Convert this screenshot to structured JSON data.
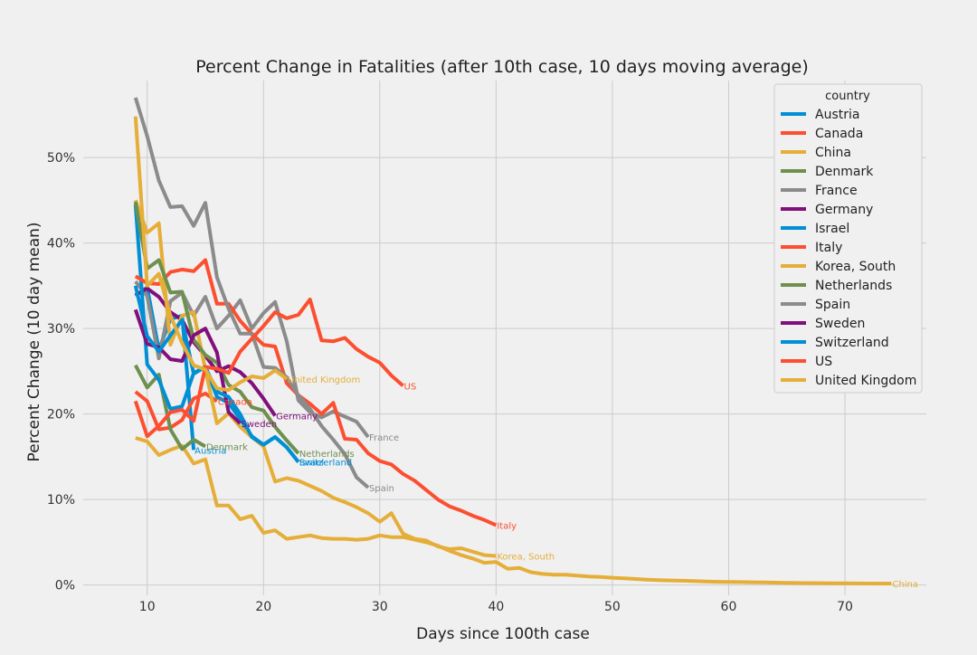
{
  "chart_data": {
    "type": "line",
    "title": "Percent Change in Fatalities (after 10th case, 10 days moving average)",
    "xlabel": "Days since 100th case",
    "ylabel": "Percent Change (10 day mean)",
    "xlim": [
      4.5,
      77
    ],
    "ylim": [
      -1.2,
      59
    ],
    "xticks": [
      10,
      20,
      30,
      40,
      50,
      60,
      70
    ],
    "yticks": [
      0,
      10,
      20,
      30,
      40,
      50
    ],
    "ytick_format": "percent",
    "grid": true,
    "legend": {
      "title": "country",
      "placement": "top-right"
    },
    "series": [
      {
        "name": "Austria",
        "color": "#008fd5",
        "end_label": "Austria",
        "x": [
          9,
          10,
          11,
          12,
          13,
          14
        ],
        "y": [
          33.8,
          34.8,
          27.5,
          31.1,
          31.5,
          15.8
        ]
      },
      {
        "name": "Canada",
        "color": "#fc4f30",
        "end_label": "Canada",
        "x": [
          9,
          10,
          11,
          12,
          13,
          14,
          15,
          16
        ],
        "y": [
          22.6,
          21.5,
          18.2,
          18.4,
          19.3,
          21.8,
          22.4,
          21.5
        ]
      },
      {
        "name": "China",
        "color": "#e5ae38",
        "end_label": "China",
        "x": [
          9,
          10,
          11,
          12,
          13,
          14,
          15,
          16,
          17,
          18,
          19,
          20,
          21,
          22,
          23,
          24,
          25,
          26,
          27,
          28,
          29,
          30,
          31,
          32,
          33,
          34,
          35,
          36,
          37,
          38,
          39,
          40,
          41,
          42,
          43,
          44,
          45,
          46,
          47,
          48,
          49,
          50,
          51,
          52,
          53,
          54,
          55,
          56,
          57,
          58,
          59,
          60,
          61,
          62,
          63,
          64,
          65,
          66,
          67,
          68,
          69,
          70,
          71,
          72,
          73,
          74
        ],
        "y": [
          17.2,
          16.8,
          15.2,
          15.8,
          16.3,
          14.2,
          14.7,
          9.3,
          9.3,
          7.7,
          8.1,
          6.1,
          6.4,
          5.4,
          5.6,
          5.8,
          5.5,
          5.4,
          5.4,
          5.3,
          5.4,
          5.8,
          5.6,
          5.6,
          5.3,
          5.0,
          4.6,
          4.0,
          3.5,
          3.1,
          2.6,
          2.7,
          1.9,
          2.0,
          1.5,
          1.3,
          1.2,
          1.2,
          1.1,
          1.0,
          0.95,
          0.85,
          0.78,
          0.7,
          0.63,
          0.58,
          0.54,
          0.5,
          0.46,
          0.42,
          0.38,
          0.36,
          0.34,
          0.32,
          0.3,
          0.28,
          0.26,
          0.24,
          0.23,
          0.22,
          0.2,
          0.2,
          0.19,
          0.18,
          0.18,
          0.18
        ]
      },
      {
        "name": "Denmark",
        "color": "#6d904f",
        "end_label": "Denmark",
        "x": [
          9,
          10,
          11,
          12,
          13,
          14,
          15
        ],
        "y": [
          25.7,
          23.1,
          24.6,
          18.2,
          15.9,
          17.0,
          16.2
        ]
      },
      {
        "name": "France",
        "color": "#8b8b8b",
        "end_label": "France",
        "x": [
          9,
          10,
          11,
          12,
          13,
          14,
          15,
          16,
          17,
          18,
          19,
          20,
          21,
          22,
          23,
          24,
          25,
          26,
          27,
          28,
          29
        ],
        "y": [
          35.5,
          33.8,
          26.5,
          33.2,
          34.2,
          31.5,
          33.7,
          30.0,
          31.5,
          33.3,
          30.0,
          31.8,
          33.1,
          28.5,
          21.6,
          20.2,
          19.6,
          20.3,
          19.7,
          19.1,
          17.3
        ]
      },
      {
        "name": "Germany",
        "color": "#810f7c",
        "end_label": "Germany",
        "x": [
          9,
          10,
          11,
          12,
          13,
          14,
          15,
          16,
          17,
          18,
          19,
          20,
          21
        ],
        "y": [
          33.9,
          34.7,
          33.7,
          31.9,
          31.0,
          28.4,
          26.8,
          25.0,
          25.6,
          24.9,
          23.6,
          21.8,
          19.8
        ]
      },
      {
        "name": "Israel",
        "color": "#008fd5",
        "end_label": "Israel",
        "x": [
          9,
          10,
          11,
          12,
          13,
          14,
          15,
          16,
          17,
          18,
          19,
          20,
          21,
          22,
          23
        ],
        "y": [
          44.5,
          25.8,
          24.0,
          20.6,
          20.9,
          24.8,
          25.5,
          22.0,
          21.3,
          19.4,
          17.4,
          16.4,
          17.3,
          16.1,
          14.4
        ]
      },
      {
        "name": "Italy",
        "color": "#fc4f30",
        "end_label": "Italy",
        "x": [
          9,
          10,
          11,
          12,
          13,
          14,
          15,
          16,
          17,
          18,
          19,
          20,
          21,
          22,
          23,
          24,
          25,
          26,
          27,
          28,
          29,
          30,
          31,
          32,
          33,
          34,
          35,
          36,
          37,
          38,
          39,
          40
        ],
        "y": [
          36.1,
          35.3,
          35.2,
          36.6,
          36.9,
          36.7,
          38.0,
          32.9,
          32.9,
          30.9,
          29.4,
          28.1,
          27.9,
          23.6,
          22.2,
          21.2,
          20.0,
          21.3,
          17.1,
          17.0,
          15.4,
          14.5,
          14.1,
          13.0,
          12.2,
          11.1,
          10.0,
          9.2,
          8.7,
          8.1,
          7.6,
          7.0
        ]
      },
      {
        "name": "Korea, South",
        "color": "#e5ae38",
        "end_label": "Korea, South",
        "x": [
          9,
          10,
          11,
          12,
          13,
          14,
          15,
          16,
          17,
          18,
          19,
          20,
          21,
          22,
          23,
          24,
          25,
          26,
          27,
          28,
          29,
          30,
          31,
          32,
          33,
          34,
          35,
          36,
          37,
          38,
          39,
          40
        ],
        "y": [
          45.0,
          41.2,
          42.3,
          28.1,
          31.5,
          31.9,
          25.2,
          18.9,
          20.1,
          18.5,
          17.3,
          16.2,
          12.1,
          12.5,
          12.2,
          11.6,
          11.0,
          10.2,
          9.7,
          9.1,
          8.4,
          7.4,
          8.4,
          6.0,
          5.4,
          5.2,
          4.5,
          4.2,
          4.3,
          3.9,
          3.5,
          3.4
        ]
      },
      {
        "name": "Netherlands",
        "color": "#6d904f",
        "end_label": "Netherlands",
        "x": [
          9,
          10,
          11,
          12,
          13,
          14,
          15,
          16,
          17,
          18,
          19,
          20,
          21,
          22,
          23
        ],
        "y": [
          44.8,
          37.0,
          38.0,
          34.2,
          34.3,
          28.7,
          26.9,
          26.0,
          23.4,
          22.6,
          20.8,
          20.4,
          18.5,
          16.9,
          15.4
        ]
      },
      {
        "name": "Spain",
        "color": "#8b8b8b",
        "end_label": "Spain",
        "x": [
          9,
          10,
          11,
          12,
          13,
          14,
          15,
          16,
          17,
          18,
          19,
          20,
          21,
          22,
          23,
          24,
          25,
          26,
          27,
          28,
          29
        ],
        "y": [
          57.0,
          52.5,
          47.3,
          44.2,
          44.3,
          42.0,
          44.7,
          36.0,
          32.3,
          29.4,
          29.4,
          25.5,
          25.4,
          24.3,
          22.2,
          20.6,
          18.6,
          17.0,
          15.3,
          12.6,
          11.4
        ]
      },
      {
        "name": "Sweden",
        "color": "#810f7c",
        "end_label": "Sweden",
        "x": [
          9,
          10,
          11,
          12,
          13,
          14,
          15,
          16,
          17,
          18
        ],
        "y": [
          32.2,
          28.2,
          27.8,
          26.4,
          26.2,
          29.2,
          30.0,
          27.2,
          20.2,
          18.9
        ]
      },
      {
        "name": "Switzerland",
        "color": "#008fd5",
        "end_label": "Switzerland",
        "x": [
          9,
          10,
          11,
          12,
          13,
          14,
          15,
          16,
          17,
          18,
          19,
          20,
          21,
          22,
          23
        ],
        "y": [
          35.0,
          29.1,
          27.3,
          29.2,
          31.0,
          24.7,
          25.5,
          22.6,
          22.0,
          20.0,
          17.3,
          16.4,
          17.3,
          16.1,
          14.4
        ]
      },
      {
        "name": "US",
        "color": "#fc4f30",
        "end_label": "US",
        "x": [
          9,
          10,
          11,
          12,
          13,
          14,
          15,
          16,
          17,
          18,
          19,
          20,
          21,
          22,
          23,
          24,
          25,
          26,
          27,
          28,
          29,
          30,
          31,
          32
        ],
        "y": [
          21.5,
          17.4,
          18.6,
          20.2,
          20.5,
          19.2,
          25.5,
          25.3,
          24.8,
          27.3,
          28.8,
          30.3,
          31.9,
          31.2,
          31.6,
          33.4,
          28.6,
          28.5,
          28.9,
          27.6,
          26.7,
          26.0,
          24.5,
          23.3
        ]
      },
      {
        "name": "United Kingdom",
        "color": "#e5ae38",
        "end_label": "United Kingdom",
        "x": [
          9,
          10,
          11,
          12,
          13,
          14,
          15,
          16,
          17,
          18,
          19,
          20,
          21,
          22
        ],
        "y": [
          54.8,
          35.0,
          36.4,
          31.5,
          28.3,
          25.7,
          25.2,
          23.0,
          22.8,
          23.7,
          24.4,
          24.2,
          25.1,
          24.1
        ]
      }
    ]
  }
}
